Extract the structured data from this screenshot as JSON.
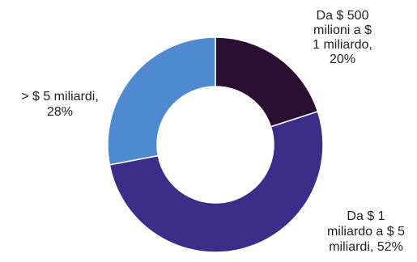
{
  "chart_data": {
    "type": "pie",
    "variant": "donut",
    "title": "",
    "start_angle_deg": 0,
    "direction": "clockwise",
    "slices": [
      {
        "key": "500m-1b",
        "label_lines": [
          "Da $ 500",
          "milioni a $",
          "1 miliardo,",
          "20%"
        ],
        "value": 20,
        "color": "#2a0f33"
      },
      {
        "key": "1b-5b",
        "label_lines": [
          "Da $ 1",
          "miliardo a $ 5",
          "miliardi, 52%"
        ],
        "value": 52,
        "color": "#3c2d88"
      },
      {
        "key": "over-5b",
        "label_lines": [
          "> $ 5 miliardi,",
          "28%"
        ],
        "value": 28,
        "color": "#4f8ad1"
      }
    ]
  }
}
